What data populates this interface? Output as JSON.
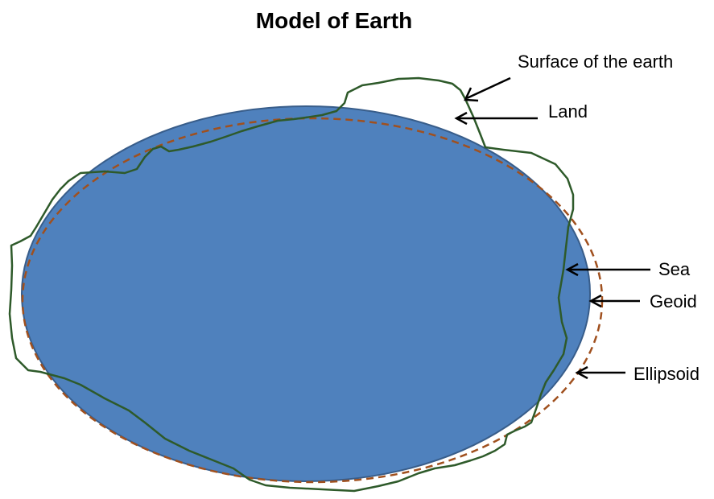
{
  "title": "Model of Earth",
  "labels": {
    "surface": "Surface of the earth",
    "land": "Land",
    "sea": "Sea",
    "geoid": "Geoid",
    "ellipsoid": "Ellipsoid"
  },
  "colors": {
    "sea_fill": "#4f81bd",
    "sea_stroke": "#385d8a",
    "geoid_dash": "#a0501e",
    "surface_line": "#2e5a2a",
    "arrow": "#000000"
  }
}
